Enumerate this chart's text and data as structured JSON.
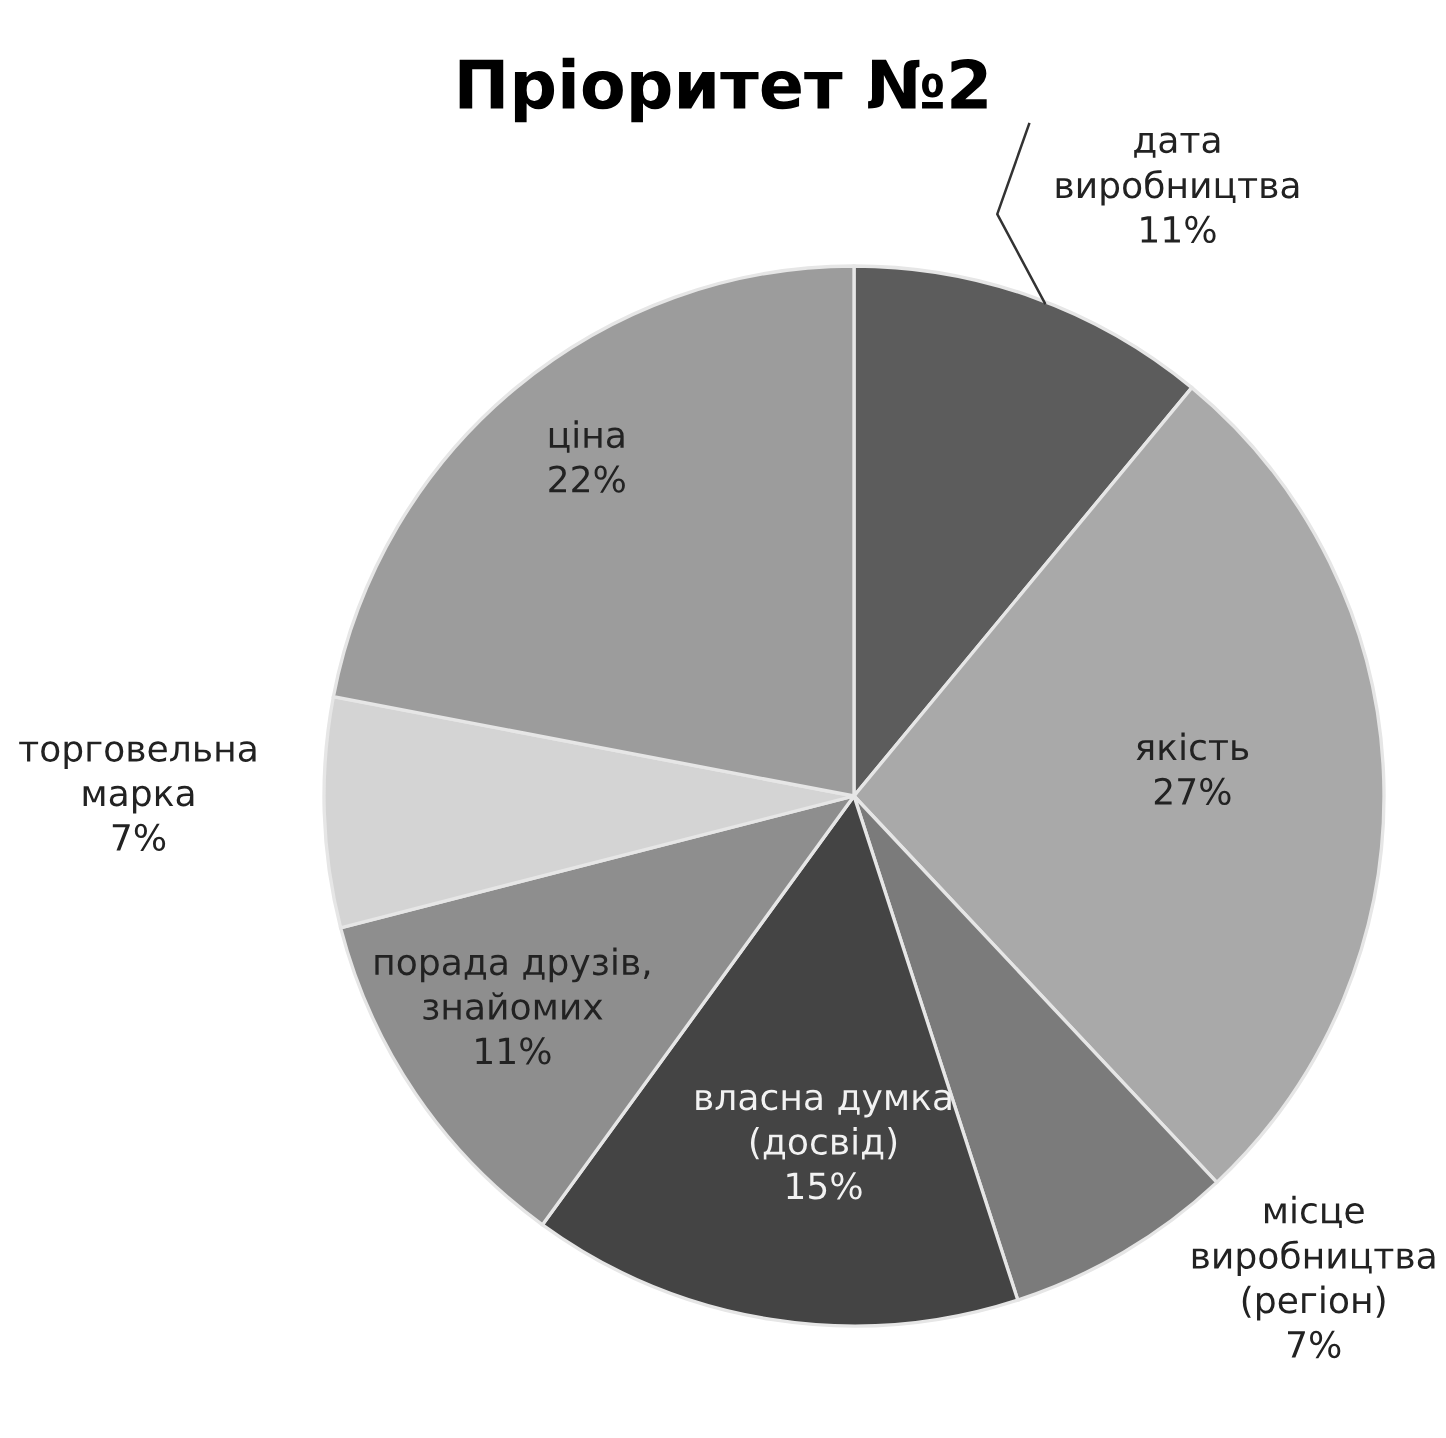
{
  "chart_data": {
    "type": "pie",
    "title": "Пріоритет №2",
    "categories": [
      "дата\nвиробництва",
      "якість",
      "місце\nвиробництва\n(регіон)",
      "власна думка\n(досвід)",
      "порада друзів,\nзнайомих",
      "торговельна\nмарка",
      "ціна"
    ],
    "values": [
      11,
      27,
      7,
      15,
      11,
      7,
      22
    ],
    "colors": [
      "#5c5c5c",
      "#a9a9a9",
      "#7b7b7b",
      "#444444",
      "#8e8e8e",
      "#d4d4d4",
      "#9c9c9c"
    ],
    "value_labels": [
      "11%",
      "27%",
      "7%",
      "15%",
      "11%",
      "7%",
      "22%"
    ]
  }
}
